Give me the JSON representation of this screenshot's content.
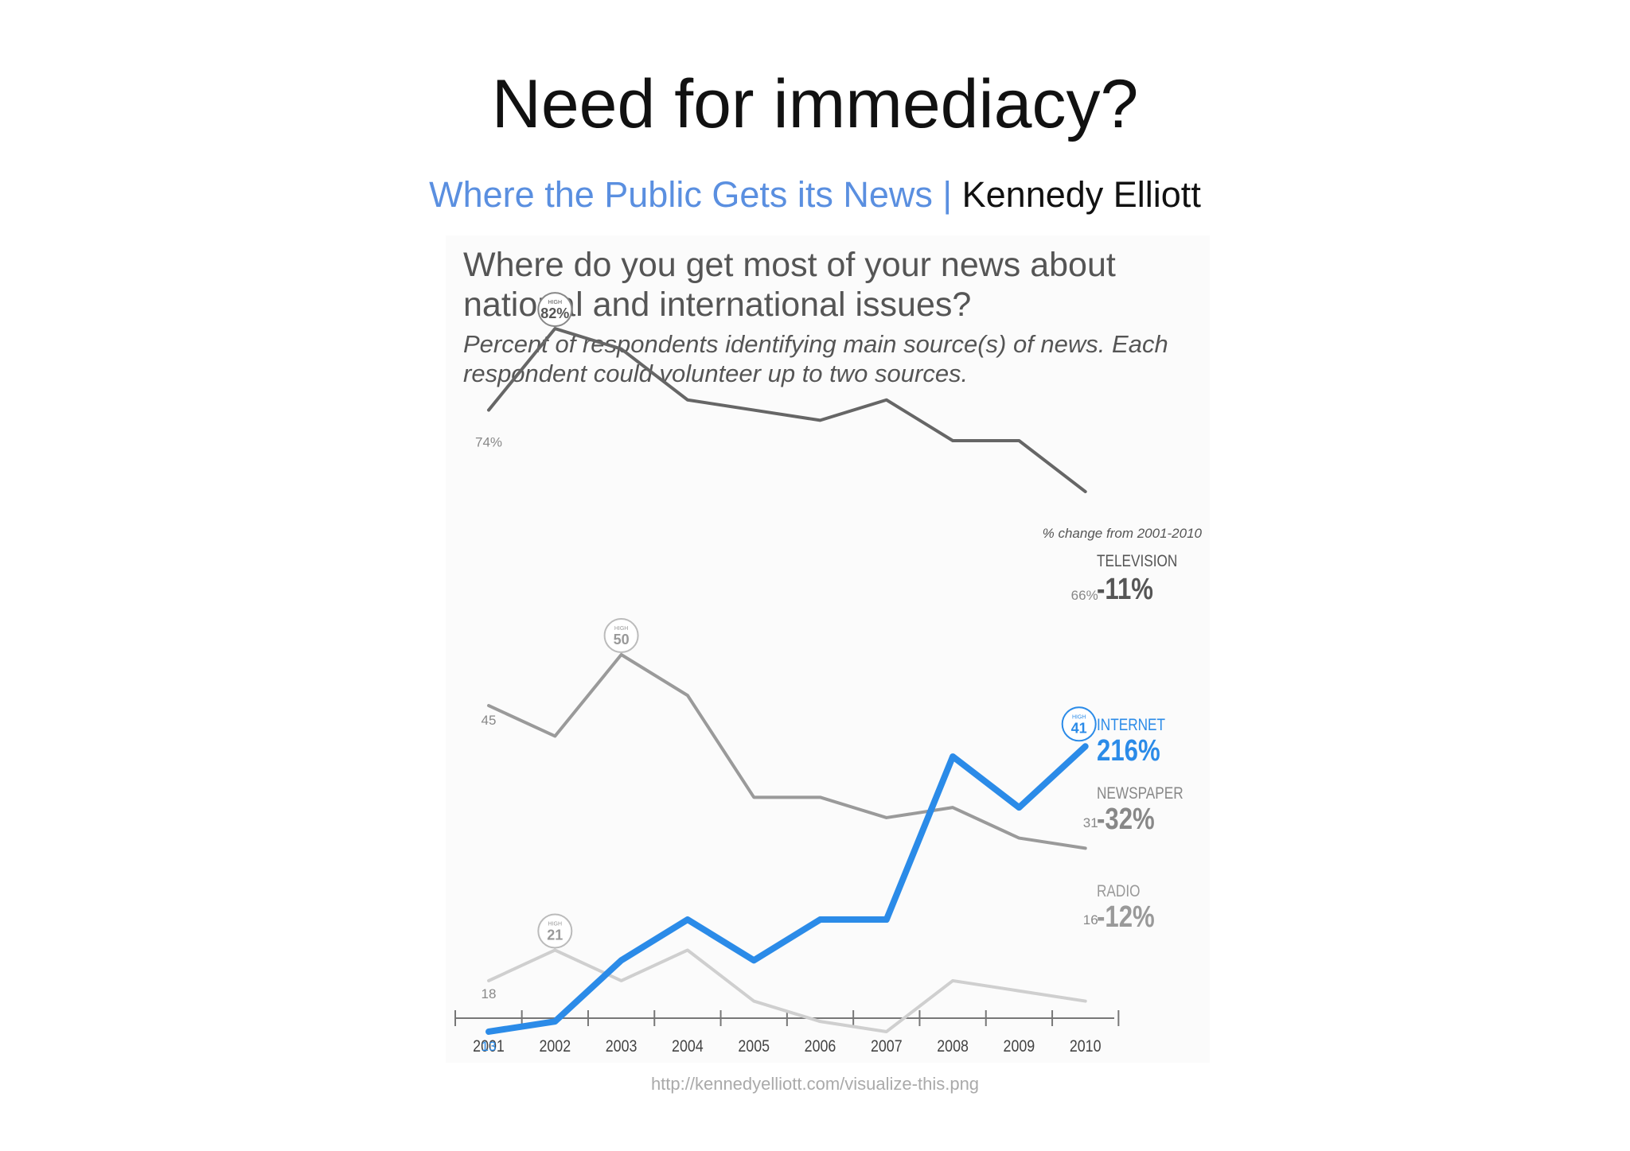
{
  "slide": {
    "title": "Need for immediacy?",
    "subtitle_link": "Where the Public Gets its News",
    "subtitle_separator": "|",
    "subtitle_author": "Kennedy Elliott",
    "source_url": "http://kennedyelliott.com/visualize-this.png"
  },
  "chart_data": {
    "type": "line",
    "title": "Where do you get most of your news about national and international issues?",
    "subtitle": "Percent of respondents identifying main source(s) of news. Each respondent could volunteer up to two sources.",
    "change_header": "% change from 2001-2010",
    "high_label": "HIGH",
    "x": [
      "2001",
      "2002",
      "2003",
      "2004",
      "2005",
      "2006",
      "2007",
      "2008",
      "2009",
      "2010"
    ],
    "ylim": [
      0,
      100
    ],
    "grid": false,
    "legend": "right",
    "series": [
      {
        "key": "television",
        "name": "TELEVISION",
        "values": [
          74,
          82,
          80,
          75,
          74,
          73,
          75,
          71,
          71,
          66
        ],
        "color": "#666666",
        "change": "-11%",
        "start_label": "74%",
        "end_label": "66%",
        "high_value": "82%",
        "high_index": 1
      },
      {
        "key": "newspaper",
        "name": "NEWSPAPER",
        "values": [
          45,
          42,
          50,
          46,
          36,
          36,
          34,
          35,
          32,
          31
        ],
        "color": "#9a9a9a",
        "change": "-32%",
        "start_label": "45",
        "end_label": "31",
        "high_value": "50",
        "high_index": 2
      },
      {
        "key": "radio",
        "name": "RADIO",
        "values": [
          18,
          21,
          18,
          21,
          16,
          14,
          13,
          18,
          17,
          16
        ],
        "color": "#cfcfcf",
        "change": "-12%",
        "start_label": "18",
        "end_label": "16",
        "high_value": "21",
        "high_index": 1
      },
      {
        "key": "internet",
        "name": "INTERNET",
        "values": [
          13,
          14,
          20,
          24,
          20,
          24,
          24,
          40,
          35,
          41
        ],
        "color": "#2b8be8",
        "change": "216%",
        "start_label": "13",
        "end_label": "",
        "high_value": "41",
        "high_index": 9
      }
    ]
  }
}
